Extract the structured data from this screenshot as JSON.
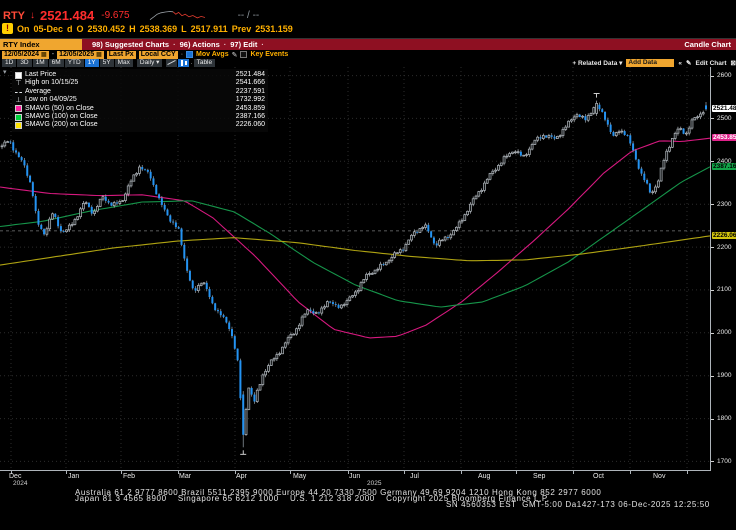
{
  "header": {
    "ticker": "RTY",
    "arrow": "↓",
    "last": "2521.484",
    "change": "-9.675",
    "quote": "-- / --",
    "flag": "!",
    "spark_gray": [
      [
        0,
        0.88
      ],
      [
        0.07,
        0.62
      ],
      [
        0.13,
        0.38
      ],
      [
        0.2,
        0.25
      ],
      [
        0.28,
        0.18
      ],
      [
        0.36,
        0.14
      ],
      [
        0.42,
        0.16
      ]
    ],
    "spark_red": [
      [
        0.42,
        0.16
      ],
      [
        0.47,
        0.38
      ],
      [
        0.52,
        0.22
      ],
      [
        0.58,
        0.52
      ],
      [
        0.64,
        0.38
      ],
      [
        0.71,
        0.62
      ],
      [
        0.78,
        0.5
      ],
      [
        0.86,
        0.72
      ],
      [
        0.93,
        0.58
      ],
      [
        1,
        0.68
      ]
    ],
    "line2": {
      "on": "On",
      "date": "05-Dec",
      "freq": "d",
      "o": "O",
      "open": "2530.452",
      "h": "H",
      "high": "2538.369",
      "l": "L",
      "low": "2517.911",
      "prev": "Prev",
      "prev_val": "2531.159"
    }
  },
  "toolbar": {
    "security": "RTY Index",
    "items": [
      "98) Suggested Charts",
      "96) Actions",
      "97) Edit"
    ],
    "dot": "·",
    "title": "Candle Chart"
  },
  "fields": {
    "date_from": "12/05/2024",
    "date_to": "12/05/2025",
    "px": "Last Px",
    "ccy": "Local CCY",
    "mov_avgs": "Mov Avgs",
    "key_events": "Key Events"
  },
  "tabs": {
    "periods": [
      "1D",
      "3D",
      "1M",
      "6M",
      "YTD",
      "1Y",
      "5Y",
      "Max"
    ],
    "active": "1Y",
    "freq": "Daily",
    "table": "Table"
  },
  "right_tools": {
    "related": "+ Related Data",
    "add_data": "Add Data",
    "edit": "Edit Chart"
  },
  "icons": {
    "calendar": "▦",
    "pencil": "✎",
    "chevron_down": "▾",
    "chevrons_left": "«",
    "close": "⊠",
    "dash": "-",
    "dot": "·",
    "collapse": "▾"
  },
  "legend": {
    "rows": [
      {
        "chip": "square",
        "color": "#ffffff",
        "label": "Last Price",
        "value": "2521.484"
      },
      {
        "chip": "glyph",
        "glyph": "⊤",
        "icon": "high-marker-icon",
        "label": "High on 10/15/25",
        "value": "2541.666"
      },
      {
        "chip": "avg",
        "label": "Average",
        "value": "2237.591"
      },
      {
        "chip": "glyph",
        "glyph": "⊥",
        "icon": "low-marker-icon",
        "label": "Low on 04/09/25",
        "value": "1732.992"
      },
      {
        "chip": "square",
        "color": "#ff1fa0",
        "label": "SMAVG (50) on Close",
        "value": "2453.859"
      },
      {
        "chip": "square",
        "color": "#00d23c",
        "label": "SMAVG (100) on Close",
        "value": "2387.166"
      },
      {
        "chip": "square",
        "color": "#ffe400",
        "label": "SMAVG (200) on Close",
        "value": "2226.060"
      }
    ]
  },
  "chart_data": {
    "type": "candlestick",
    "symbol": "RTY Index",
    "period": "daily",
    "date_range": [
      "12/05/2024",
      "12/05/2025"
    ],
    "ylim": [
      1680,
      2620
    ],
    "yticks": [
      1700,
      1800,
      1900,
      2000,
      2100,
      2200,
      2300,
      2400,
      2500,
      2600
    ],
    "month_grid_t": [
      0.0155,
      0.093,
      0.1704,
      0.2507,
      0.331,
      0.4085,
      0.4901,
      0.569,
      0.6493,
      0.7268,
      0.807,
      0.8873,
      0.9676
    ],
    "month_labels": [
      {
        "label": "Dec",
        "t": 0.022
      },
      {
        "label": "Jan",
        "t": 0.1056
      },
      {
        "label": "Feb",
        "t": 0.1831
      },
      {
        "label": "Mar",
        "t": 0.262
      },
      {
        "label": "Apr",
        "t": 0.3423
      },
      {
        "label": "May",
        "t": 0.4225
      },
      {
        "label": "Jun",
        "t": 0.5014
      },
      {
        "label": "Jul",
        "t": 0.5873
      },
      {
        "label": "Aug",
        "t": 0.6833
      },
      {
        "label": "Sep",
        "t": 0.7606
      },
      {
        "label": "Oct",
        "t": 0.8451
      },
      {
        "label": "Nov",
        "t": 0.9296
      }
    ],
    "year_labels": [
      {
        "label": "2024",
        "t": 0.03
      },
      {
        "label": "2025",
        "t": 0.528
      }
    ],
    "last": 2521.484,
    "last_ohlc": {
      "open": 2530.452,
      "high": 2538.369,
      "low": 2517.911,
      "close": 2521.484
    },
    "average_line": 2237.591,
    "high_marker": {
      "t": 0.843,
      "value": 2541.666,
      "date": "10/15/25"
    },
    "low_marker": {
      "t": 0.3426,
      "value": 1732.992,
      "date": "04/09/25"
    },
    "badges": [
      {
        "value": "2521.484",
        "price": 2521.484,
        "bg": "#ffffff",
        "fg": "#000000"
      },
      {
        "value": "2453.859",
        "price": 2453.859,
        "bg": "#e0218a",
        "fg": "#ffffff"
      },
      {
        "value": "2387.166",
        "price": 2387.166,
        "bg": "#12a348",
        "fg": "#000000"
      },
      {
        "value": "2226.060",
        "price": 2226.06,
        "bg": "#d3c50e",
        "fg": "#000000"
      }
    ],
    "price_anchors": [
      [
        0,
        2436
      ],
      [
        0.01,
        2448
      ],
      [
        0.02,
        2420
      ],
      [
        0.032,
        2388
      ],
      [
        0.042,
        2342
      ],
      [
        0.05,
        2255
      ],
      [
        0.06,
        2232
      ],
      [
        0.072,
        2278
      ],
      [
        0.085,
        2235
      ],
      [
        0.093,
        2240
      ],
      [
        0.105,
        2268
      ],
      [
        0.118,
        2306
      ],
      [
        0.13,
        2278
      ],
      [
        0.143,
        2318
      ],
      [
        0.157,
        2296
      ],
      [
        0.17,
        2308
      ],
      [
        0.183,
        2352
      ],
      [
        0.195,
        2388
      ],
      [
        0.21,
        2368
      ],
      [
        0.225,
        2302
      ],
      [
        0.24,
        2262
      ],
      [
        0.251,
        2238
      ],
      [
        0.262,
        2152
      ],
      [
        0.272,
        2092
      ],
      [
        0.285,
        2125
      ],
      [
        0.298,
        2068
      ],
      [
        0.312,
        2040
      ],
      [
        0.325,
        2005
      ],
      [
        0.334,
        1945
      ],
      [
        0.34,
        1818
      ],
      [
        0.3426,
        1760
      ],
      [
        0.35,
        1878
      ],
      [
        0.358,
        1836
      ],
      [
        0.37,
        1902
      ],
      [
        0.385,
        1938
      ],
      [
        0.4,
        1968
      ],
      [
        0.4085,
        1992
      ],
      [
        0.42,
        2012
      ],
      [
        0.435,
        2058
      ],
      [
        0.448,
        2040
      ],
      [
        0.462,
        2075
      ],
      [
        0.475,
        2060
      ],
      [
        0.49,
        2072
      ],
      [
        0.505,
        2102
      ],
      [
        0.52,
        2138
      ],
      [
        0.535,
        2150
      ],
      [
        0.55,
        2172
      ],
      [
        0.569,
        2196
      ],
      [
        0.585,
        2232
      ],
      [
        0.6,
        2252
      ],
      [
        0.615,
        2206
      ],
      [
        0.632,
        2222
      ],
      [
        0.649,
        2252
      ],
      [
        0.665,
        2298
      ],
      [
        0.68,
        2335
      ],
      [
        0.695,
        2372
      ],
      [
        0.71,
        2400
      ],
      [
        0.727,
        2428
      ],
      [
        0.74,
        2408
      ],
      [
        0.755,
        2445
      ],
      [
        0.77,
        2462
      ],
      [
        0.785,
        2452
      ],
      [
        0.8,
        2478
      ],
      [
        0.815,
        2512
      ],
      [
        0.828,
        2495
      ],
      [
        0.843,
        2532
      ],
      [
        0.856,
        2505
      ],
      [
        0.868,
        2455
      ],
      [
        0.878,
        2475
      ],
      [
        0.887,
        2462
      ],
      [
        0.898,
        2418
      ],
      [
        0.908,
        2370
      ],
      [
        0.922,
        2325
      ],
      [
        0.932,
        2352
      ],
      [
        0.942,
        2415
      ],
      [
        0.952,
        2452
      ],
      [
        0.962,
        2478
      ],
      [
        0.972,
        2465
      ],
      [
        0.982,
        2498
      ],
      [
        0.992,
        2512
      ],
      [
        1,
        2521.5
      ]
    ],
    "ma_series": [
      {
        "name": "SMAVG (50) on Close",
        "value": 2453.859,
        "color": "#d6197f",
        "anchors": [
          [
            0,
            2340
          ],
          [
            0.07,
            2325
          ],
          [
            0.14,
            2320
          ],
          [
            0.2,
            2322
          ],
          [
            0.26,
            2308
          ],
          [
            0.3,
            2268
          ],
          [
            0.36,
            2178
          ],
          [
            0.42,
            2072
          ],
          [
            0.47,
            2008
          ],
          [
            0.52,
            1988
          ],
          [
            0.56,
            1992
          ],
          [
            0.6,
            2018
          ],
          [
            0.65,
            2072
          ],
          [
            0.7,
            2140
          ],
          [
            0.75,
            2212
          ],
          [
            0.8,
            2288
          ],
          [
            0.85,
            2372
          ],
          [
            0.89,
            2424
          ],
          [
            0.93,
            2448
          ],
          [
            0.96,
            2446
          ],
          [
            1,
            2453.86
          ]
        ]
      },
      {
        "name": "SMAVG (100) on Close",
        "value": 2387.166,
        "color": "#16954a",
        "anchors": [
          [
            0,
            2248
          ],
          [
            0.06,
            2260
          ],
          [
            0.13,
            2285
          ],
          [
            0.2,
            2305
          ],
          [
            0.27,
            2308
          ],
          [
            0.33,
            2282
          ],
          [
            0.38,
            2232
          ],
          [
            0.44,
            2165
          ],
          [
            0.5,
            2112
          ],
          [
            0.56,
            2075
          ],
          [
            0.62,
            2060
          ],
          [
            0.68,
            2072
          ],
          [
            0.74,
            2110
          ],
          [
            0.8,
            2165
          ],
          [
            0.86,
            2235
          ],
          [
            0.92,
            2305
          ],
          [
            0.96,
            2352
          ],
          [
            1,
            2387.17
          ]
        ]
      },
      {
        "name": "SMAVG (200) on Close",
        "value": 2226.06,
        "color": "#afa312",
        "anchors": [
          [
            0,
            2158
          ],
          [
            0.08,
            2178
          ],
          [
            0.16,
            2198
          ],
          [
            0.25,
            2214
          ],
          [
            0.33,
            2222
          ],
          [
            0.42,
            2210
          ],
          [
            0.5,
            2192
          ],
          [
            0.58,
            2178
          ],
          [
            0.66,
            2168
          ],
          [
            0.74,
            2170
          ],
          [
            0.82,
            2184
          ],
          [
            0.9,
            2202
          ],
          [
            0.95,
            2214
          ],
          [
            1,
            2226.06
          ]
        ]
      }
    ],
    "render": {
      "n_candles": 252,
      "body_w": 2,
      "f1": 1.13,
      "f2": 2.71,
      "f3": 0.77,
      "jitter": 6,
      "wick": 5,
      "low_candle": {
        "open": 1856,
        "close": 1762,
        "high": 1864,
        "low": 1732.992
      },
      "high_candle": {
        "open": 2512,
        "close": 2535,
        "high": 2541.666,
        "low": 2506
      },
      "colors": {
        "up_fill": "#101314",
        "up_stroke": "#b6bcc2",
        "down": "#2493f2",
        "wick": "#9aa6b0",
        "grid": "#2c2c2c",
        "avg_line": "#d7dbde",
        "marker": "#ffffff",
        "spine": "#aeb4ba"
      }
    }
  },
  "footer": {
    "line1": "Australia 61 2 9777 8600 Brazil 5511 2395 9000 Europe 44 20 7330 7500 Germany 49 69 9204 1210 Hong Kong 852 2977 6000",
    "line2": "Japan 81 3 4565 8900    Singapore 65 6212 1000    U.S. 1 212 318 2000    Copyright 2025 Bloomberg Finance L.P.",
    "line3": "SN 4560353 EST  GMT-5:00 Da1427-173 06-Dec-2025 12:25:50"
  }
}
